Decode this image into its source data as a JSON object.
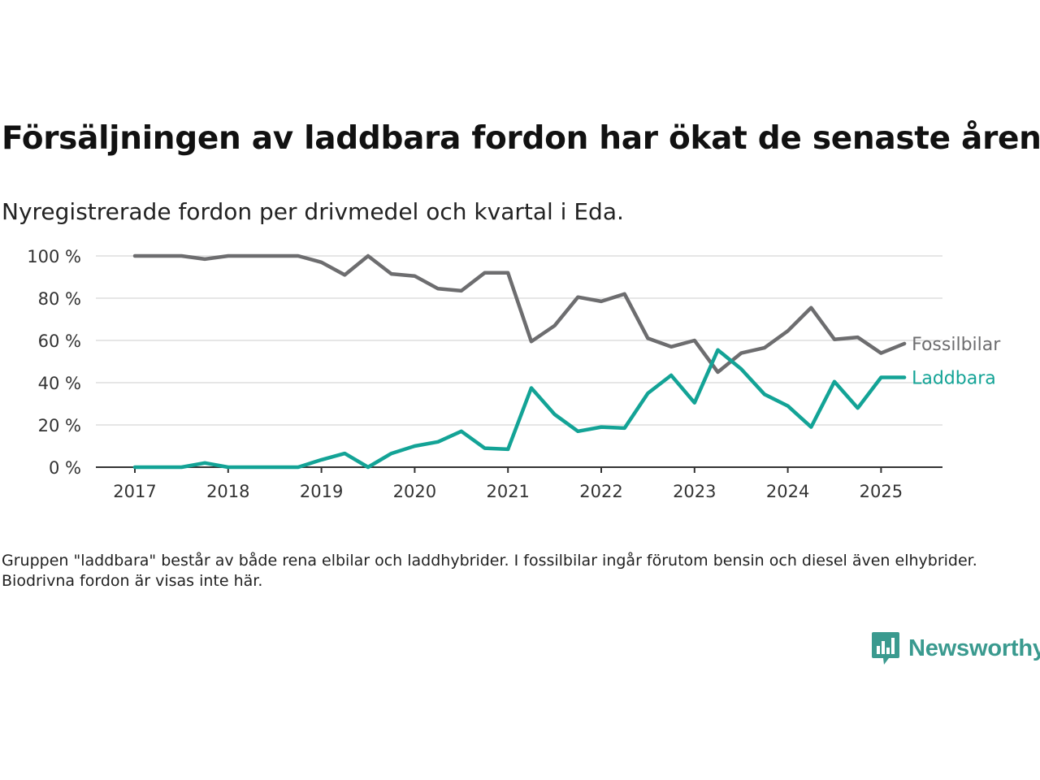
{
  "title": "Försäljningen av laddbara fordon har ökat de senaste åren",
  "subtitle": "Nyregistrerade fordon per drivmedel och kvartal i Eda.",
  "footnote": "Gruppen \"laddbara\" består av både rena elbilar och laddhybrider. I fossilbilar ingår förutom bensin och diesel även elhybrider. Biodrivna fordon är visas inte här.",
  "logo": {
    "text": "Newsworthy",
    "icon": "bar-chart-speech-bubble-icon",
    "color": "#3a9a8f"
  },
  "chart_data": {
    "type": "line",
    "x_unit": "quarter",
    "x": [
      "2017-Q1",
      "2017-Q2",
      "2017-Q3",
      "2017-Q4",
      "2018-Q1",
      "2018-Q2",
      "2018-Q3",
      "2018-Q4",
      "2019-Q1",
      "2019-Q2",
      "2019-Q3",
      "2019-Q4",
      "2020-Q1",
      "2020-Q2",
      "2020-Q3",
      "2020-Q4",
      "2021-Q1",
      "2021-Q2",
      "2021-Q3",
      "2021-Q4",
      "2022-Q1",
      "2022-Q2",
      "2022-Q3",
      "2022-Q4",
      "2023-Q1",
      "2023-Q2",
      "2023-Q3",
      "2023-Q4",
      "2024-Q1",
      "2024-Q2",
      "2024-Q3",
      "2024-Q4",
      "2025-Q1",
      "2025-Q2"
    ],
    "x_ticks": [
      "2017",
      "2018",
      "2019",
      "2020",
      "2021",
      "2022",
      "2023",
      "2024",
      "2025"
    ],
    "y_ticks": [
      "0 %",
      "20 %",
      "40 %",
      "60 %",
      "80 %",
      "100 %"
    ],
    "ylim": [
      0,
      100
    ],
    "grid": true,
    "legend": "direct labels at line ends",
    "series": [
      {
        "name": "Fossilbilar",
        "color": "#6d6d6f",
        "values": [
          100,
          100,
          100,
          98.5,
          100,
          100,
          100,
          100,
          97,
          91,
          100,
          91.5,
          90.5,
          84.5,
          83.5,
          92,
          92,
          59.5,
          67,
          80.5,
          78.5,
          82,
          61,
          57,
          60,
          45,
          54,
          56.5,
          64.5,
          75.5,
          60.5,
          61.5,
          54,
          58.5
        ]
      },
      {
        "name": "Laddbara",
        "color": "#13a396",
        "values": [
          0,
          0,
          0,
          2,
          0,
          0,
          0,
          0,
          3.5,
          6.5,
          0,
          6.5,
          10,
          12,
          17,
          9,
          8.5,
          37.5,
          25,
          17,
          19,
          18.5,
          35,
          43.5,
          30.5,
          55.5,
          46.5,
          34.5,
          29,
          19,
          40.5,
          28,
          42.5,
          42.5
        ]
      }
    ]
  }
}
